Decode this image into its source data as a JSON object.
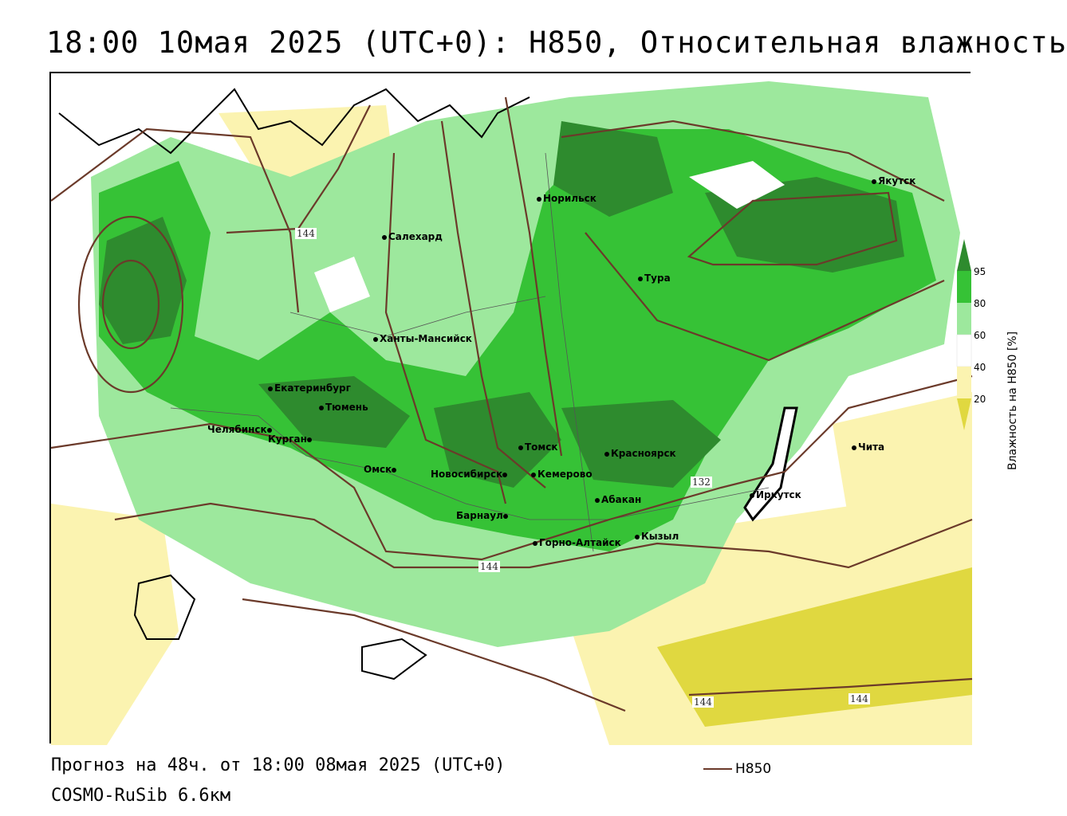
{
  "title": "18:00 10мая 2025 (UTC+0): H850, Относительная влажность",
  "footer": {
    "forecast": "Прогноз на 48ч. от 18:00 08мая 2025 (UTC+0)",
    "model": "COSMO-RuSib 6.6км",
    "series_label": "H850"
  },
  "legend": {
    "title": "Влажность на H850 [%]",
    "ticks": [
      "95",
      "80",
      "60",
      "40",
      "20"
    ],
    "colors": {
      "gt95": "#2e8b2e",
      "80_95": "#36c236",
      "60_80": "#9de89d",
      "40_60": "#ffffff",
      "20_40": "#fbf3b0",
      "lt20": "#e0d840"
    }
  },
  "cities": [
    {
      "name": "Норильск"
    },
    {
      "name": "Якутск"
    },
    {
      "name": "Салехард"
    },
    {
      "name": "Тура"
    },
    {
      "name": "Ханты-Мансийск"
    },
    {
      "name": "Екатеринбург"
    },
    {
      "name": "Тюмень"
    },
    {
      "name": "Челябинск"
    },
    {
      "name": "Курган"
    },
    {
      "name": "Омск"
    },
    {
      "name": "Новосибирск"
    },
    {
      "name": "Томск"
    },
    {
      "name": "Кемерово"
    },
    {
      "name": "Красноярск"
    },
    {
      "name": "Абакан"
    },
    {
      "name": "Барнаул"
    },
    {
      "name": "Горно-Алтайск"
    },
    {
      "name": "Кызыл"
    },
    {
      "name": "Иркутск"
    },
    {
      "name": "Чита"
    }
  ],
  "contour_labels": [
    "144",
    "132",
    "144",
    "144",
    "144"
  ],
  "contour_color": "#6b3a2a"
}
